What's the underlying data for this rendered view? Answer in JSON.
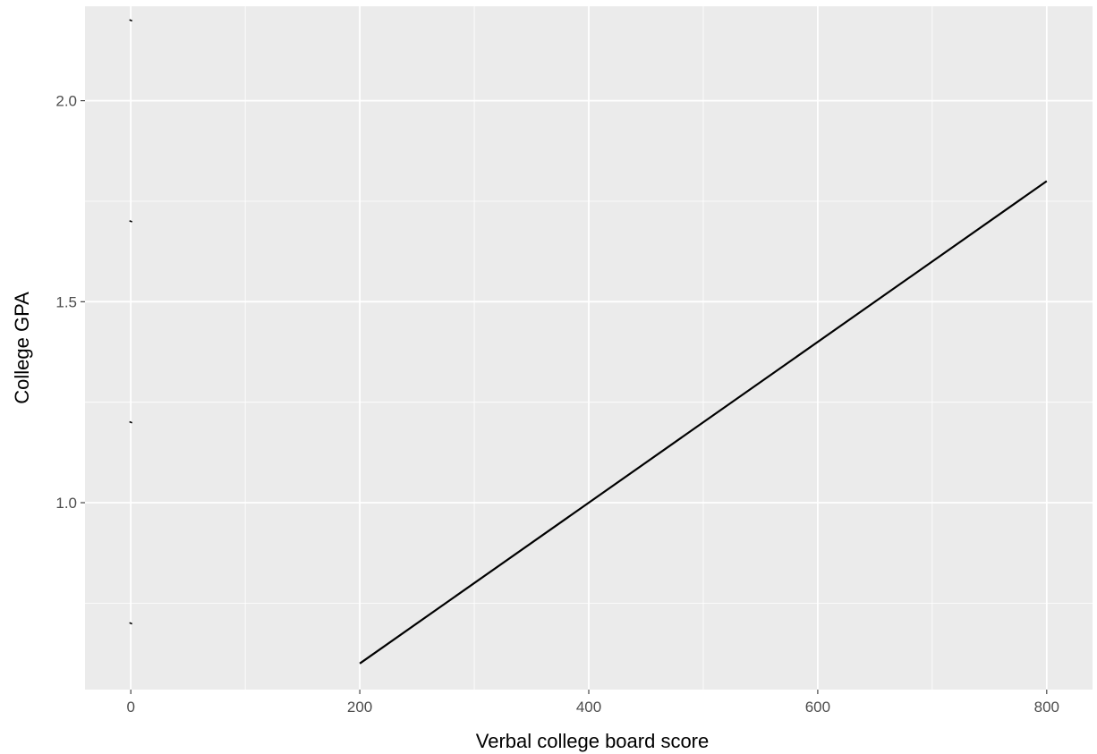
{
  "chart_data": {
    "type": "line",
    "title": "",
    "xlabel": "Verbal college board score",
    "ylabel": "College GPA",
    "xlim": [
      -40,
      840
    ],
    "ylim": [
      0.535,
      2.235
    ],
    "x_ticks": [
      0,
      200,
      400,
      600,
      800
    ],
    "x_tick_labels": [
      "0",
      "200",
      "400",
      "600",
      "800"
    ],
    "x_minor_ticks": [
      100,
      300,
      500,
      700
    ],
    "y_ticks": [
      1.0,
      1.5,
      2.0
    ],
    "y_tick_labels": [
      "1.0",
      "1.5",
      "2.0"
    ],
    "y_minor_ticks": [
      0.75,
      1.25,
      1.75
    ],
    "grid": true,
    "background": "#ebebeb",
    "gridline_color": "#ffffff",
    "line_color": "#000000",
    "series": [
      {
        "kind": "line",
        "x": [
          200,
          800
        ],
        "y": [
          0.6,
          1.8
        ]
      },
      {
        "kind": "dash",
        "x": [
          0,
          0,
          0,
          0
        ],
        "y": [
          0.7,
          1.2,
          1.7,
          2.2
        ]
      }
    ]
  }
}
